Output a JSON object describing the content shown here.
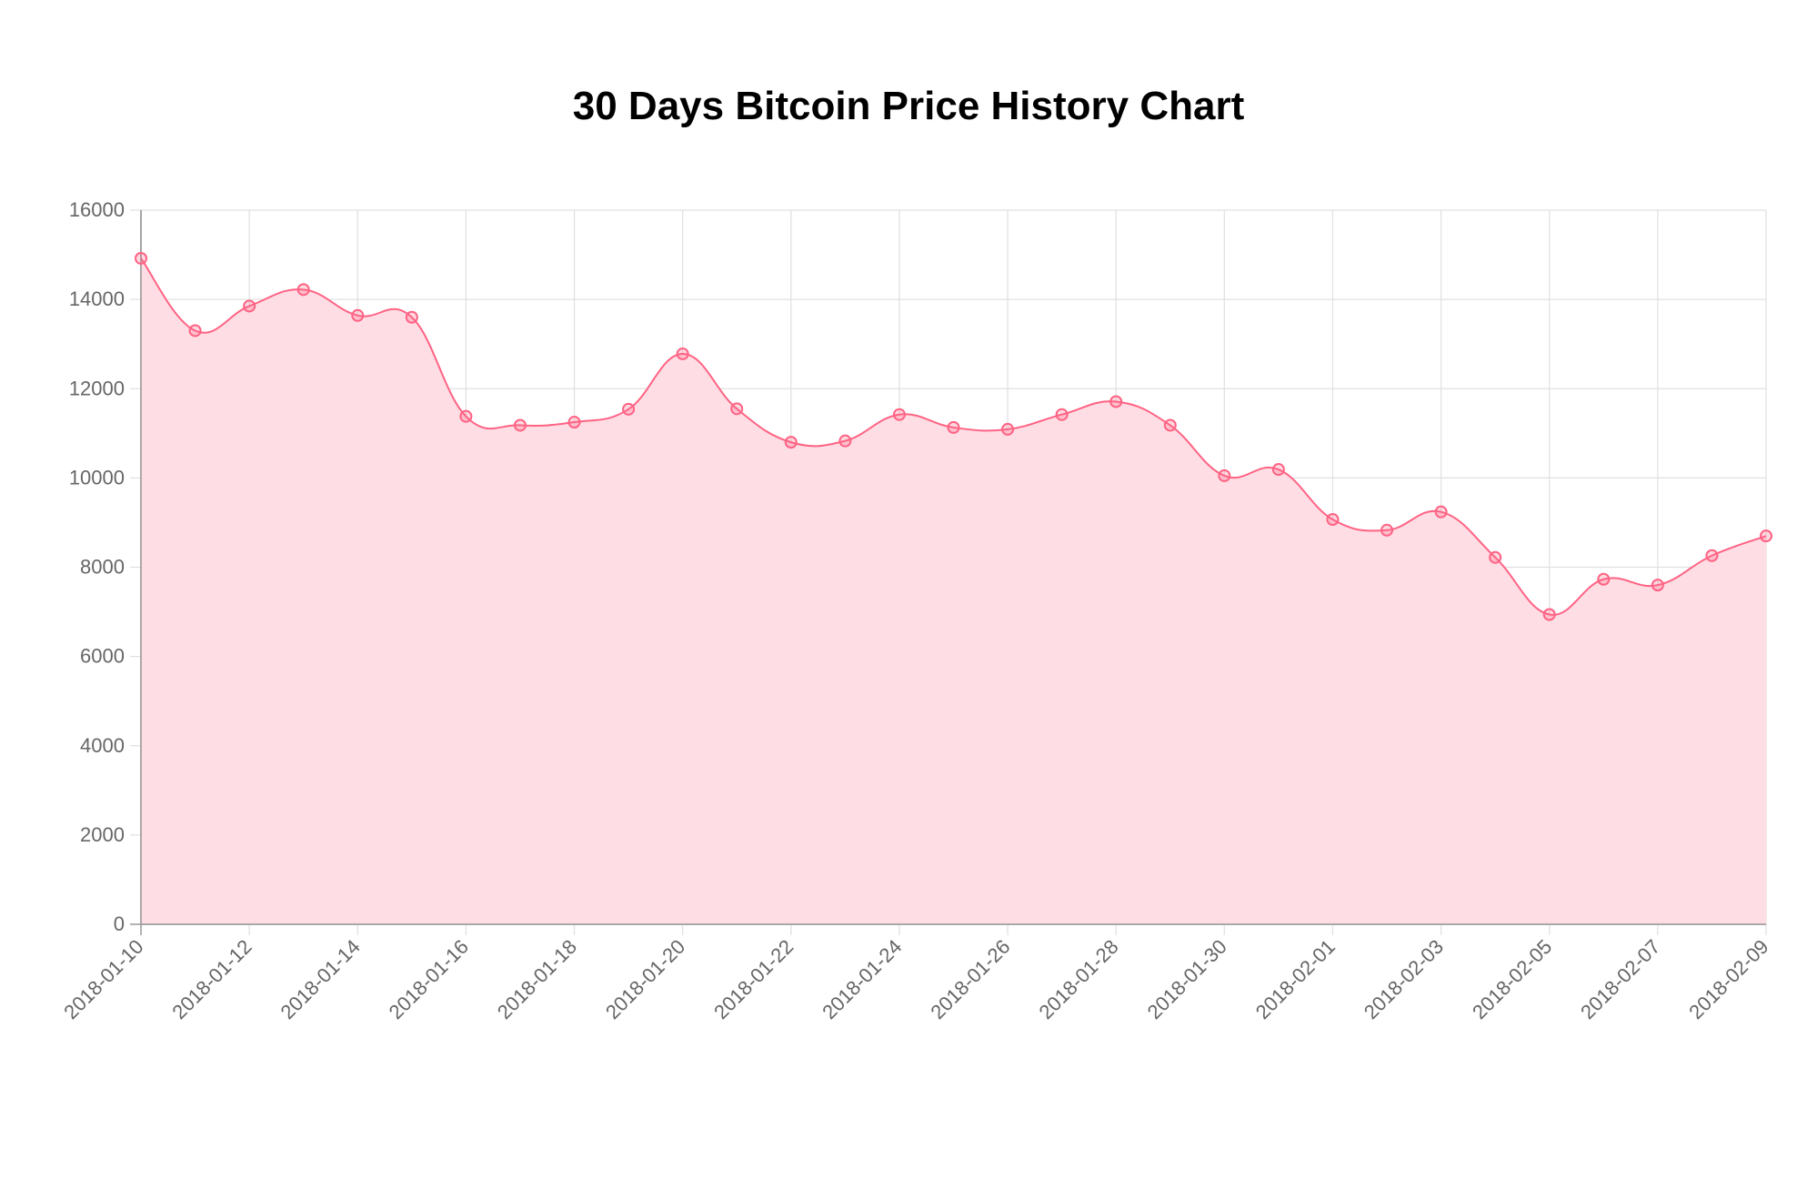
{
  "chart_data": {
    "type": "area",
    "title": "30 Days Bitcoin Price History Chart",
    "xlabel": "",
    "ylabel": "",
    "ylim": [
      0,
      16000
    ],
    "y_ticks": [
      0,
      2000,
      4000,
      6000,
      8000,
      10000,
      12000,
      14000,
      16000
    ],
    "x_tick_labels": [
      "2018-01-10",
      "2018-01-12",
      "2018-01-14",
      "2018-01-16",
      "2018-01-18",
      "2018-01-20",
      "2018-01-22",
      "2018-01-24",
      "2018-01-26",
      "2018-01-28",
      "2018-01-30",
      "2018-02-01",
      "2018-02-03",
      "2018-02-05",
      "2018-02-07",
      "2018-02-09"
    ],
    "grid": true,
    "legend": "none",
    "line_color": "#ff6384",
    "fill_color": "#ffdde4",
    "x": [
      "2018-01-10",
      "2018-01-11",
      "2018-01-12",
      "2018-01-13",
      "2018-01-14",
      "2018-01-15",
      "2018-01-16",
      "2018-01-17",
      "2018-01-18",
      "2018-01-19",
      "2018-01-20",
      "2018-01-21",
      "2018-01-22",
      "2018-01-23",
      "2018-01-24",
      "2018-01-25",
      "2018-01-26",
      "2018-01-27",
      "2018-01-28",
      "2018-01-29",
      "2018-01-30",
      "2018-01-31",
      "2018-02-01",
      "2018-02-02",
      "2018-02-03",
      "2018-02-04",
      "2018-02-05",
      "2018-02-06",
      "2018-02-07",
      "2018-02-08",
      "2018-02-09"
    ],
    "series": [
      {
        "values": [
          14920,
          13300,
          13850,
          14220,
          13640,
          13600,
          11380,
          11180,
          11250,
          11540,
          12780,
          11550,
          10800,
          10830,
          11420,
          11130,
          11090,
          11420,
          11710,
          11180,
          10050,
          10190,
          9070,
          8830,
          9240,
          8220,
          6940,
          7730,
          7600,
          8260,
          8700
        ]
      }
    ]
  }
}
